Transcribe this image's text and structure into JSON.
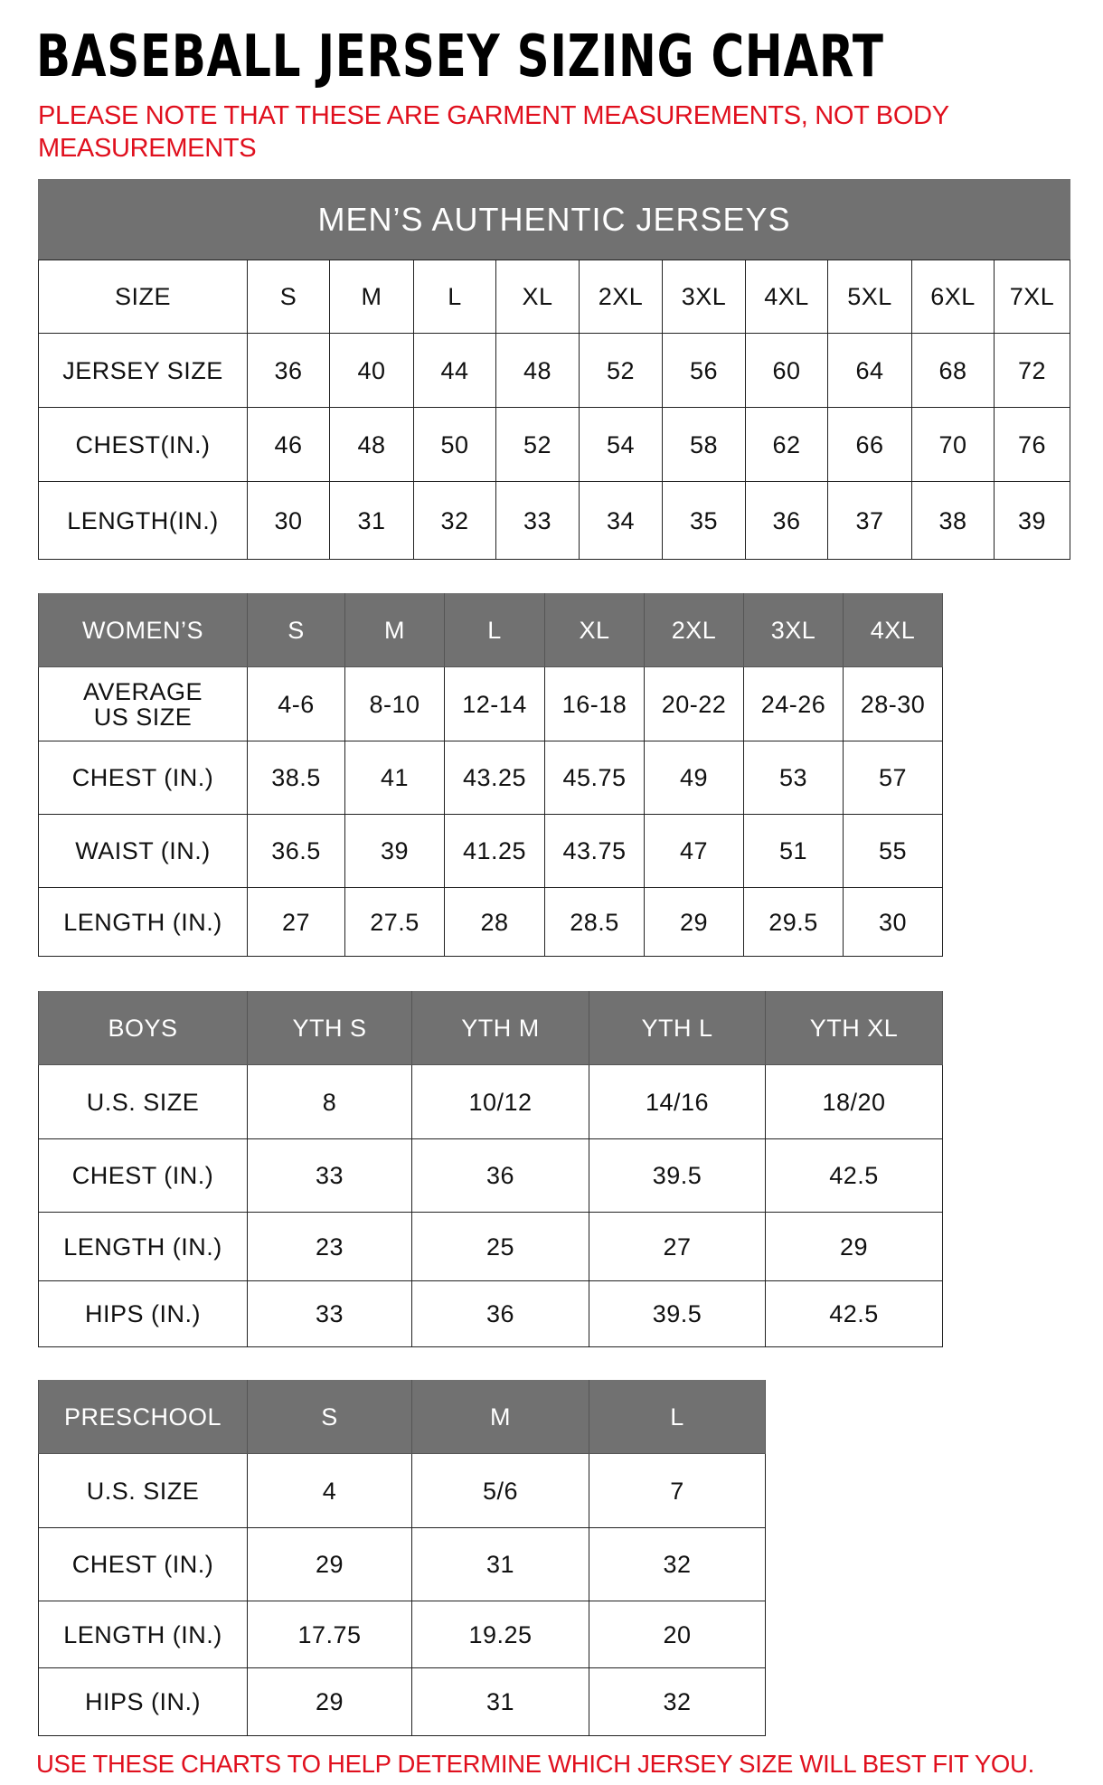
{
  "title": "BASEBALL JERSEY SIZING CHART",
  "note": "PLEASE NOTE THAT THESE ARE GARMENT MEASUREMENTS, NOT BODY MEASUREMENTS",
  "footer": "USE THESE CHARTS TO HELP DETERMINE WHICH JERSEY SIZE WILL BEST FIT YOU.",
  "colors": {
    "header_gray": "#717171",
    "note_red": "#e0101e"
  },
  "tables": [
    {
      "id": "mens",
      "banner": "MEN’S AUTHENTIC JERSEYS",
      "header_style": "plain",
      "header": [
        "SIZE",
        "S",
        "M",
        "L",
        "XL",
        "2XL",
        "3XL",
        "4XL",
        "5XL",
        "6XL",
        "7XL"
      ],
      "rows": [
        [
          "JERSEY SIZE",
          "36",
          "40",
          "44",
          "48",
          "52",
          "56",
          "60",
          "64",
          "68",
          "72"
        ],
        [
          "CHEST(IN.)",
          "46",
          "48",
          "50",
          "52",
          "54",
          "58",
          "62",
          "66",
          "70",
          "76"
        ],
        [
          "LENGTH(IN.)",
          "30",
          "31",
          "32",
          "33",
          "34",
          "35",
          "36",
          "37",
          "38",
          "39"
        ]
      ]
    },
    {
      "id": "womens",
      "header_style": "gray",
      "header": [
        "WOMEN’S",
        "S",
        "M",
        "L",
        "XL",
        "2XL",
        "3XL",
        "4XL"
      ],
      "rows": [
        [
          "AVERAGE US SIZE",
          "4-6",
          "8-10",
          "12-14",
          "16-18",
          "20-22",
          "24-26",
          "28-30"
        ],
        [
          "CHEST (IN.)",
          "38.5",
          "41",
          "43.25",
          "45.75",
          "49",
          "53",
          "57"
        ],
        [
          "WAIST (IN.)",
          "36.5",
          "39",
          "41.25",
          "43.75",
          "47",
          "51",
          "55"
        ],
        [
          "LENGTH (IN.)",
          "27",
          "27.5",
          "28",
          "28.5",
          "29",
          "29.5",
          "30"
        ]
      ]
    },
    {
      "id": "boys",
      "header_style": "gray",
      "header": [
        "BOYS",
        "YTH S",
        "YTH M",
        "YTH L",
        "YTH XL"
      ],
      "rows": [
        [
          "U.S. SIZE",
          "8",
          "10/12",
          "14/16",
          "18/20"
        ],
        [
          "CHEST (IN.)",
          "33",
          "36",
          "39.5",
          "42.5"
        ],
        [
          "LENGTH (IN.)",
          "23",
          "25",
          "27",
          "29"
        ],
        [
          "HIPS (IN.)",
          "33",
          "36",
          "39.5",
          "42.5"
        ]
      ]
    },
    {
      "id": "preschool",
      "header_style": "gray",
      "header": [
        "PRESCHOOL",
        "S",
        "M",
        "L"
      ],
      "rows": [
        [
          "U.S. SIZE",
          "4",
          "5/6",
          "7"
        ],
        [
          "CHEST (IN.)",
          "29",
          "31",
          "32"
        ],
        [
          "LENGTH (IN.)",
          "17.75",
          "19.25",
          "20"
        ],
        [
          "HIPS (IN.)",
          "29",
          "31",
          "32"
        ]
      ]
    }
  ]
}
